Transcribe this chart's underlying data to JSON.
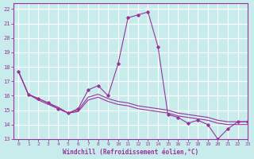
{
  "bg_color": "#c8ecec",
  "grid_color": "#ffffff",
  "line_color": "#993399",
  "xlim": [
    -0.5,
    23
  ],
  "ylim": [
    13,
    22.4
  ],
  "yticks": [
    13,
    14,
    15,
    16,
    17,
    18,
    19,
    20,
    21,
    22
  ],
  "xticks": [
    0,
    1,
    2,
    3,
    4,
    5,
    6,
    7,
    8,
    9,
    10,
    11,
    12,
    13,
    14,
    15,
    16,
    17,
    18,
    19,
    20,
    21,
    22,
    23
  ],
  "xlabel": "Windchill (Refroidissement éolien,°C)",
  "main_line": [
    17.7,
    16.1,
    15.8,
    15.5,
    15.1,
    14.8,
    15.1,
    16.4,
    16.7,
    16.0,
    18.2,
    21.4,
    21.6,
    21.8,
    19.4,
    14.7,
    14.5,
    14.1,
    14.3,
    14.0,
    13.0,
    13.7,
    14.2,
    14.2
  ],
  "smooth1": [
    17.7,
    16.1,
    15.8,
    15.5,
    15.2,
    14.8,
    15.0,
    15.9,
    16.1,
    15.8,
    15.6,
    15.5,
    15.3,
    15.2,
    15.1,
    15.0,
    14.8,
    14.7,
    14.6,
    14.5,
    14.3,
    14.2,
    14.2,
    14.2
  ],
  "smooth2": [
    17.7,
    16.1,
    15.7,
    15.4,
    15.1,
    14.8,
    14.9,
    15.7,
    15.9,
    15.6,
    15.4,
    15.3,
    15.1,
    15.0,
    14.9,
    14.8,
    14.6,
    14.5,
    14.4,
    14.3,
    14.1,
    14.0,
    14.0,
    14.0
  ]
}
